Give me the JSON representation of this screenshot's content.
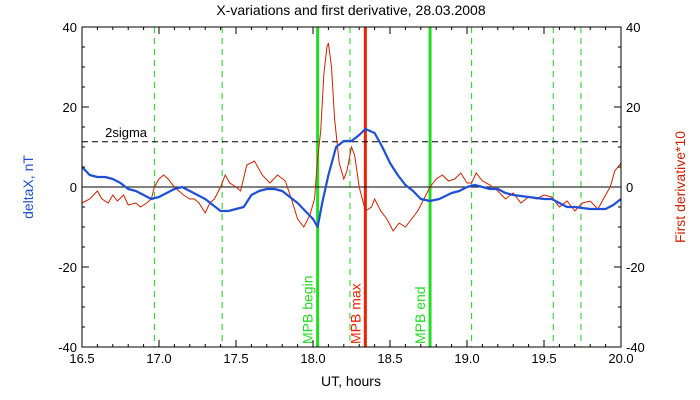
{
  "chart_data": {
    "type": "line",
    "title": "X-variations and first derivative, 28.03.2008",
    "xlabel": "UT, hours",
    "ylabel_left": "deltaX, nT",
    "ylabel_right": "First derivative*10",
    "xlim": [
      16.5,
      20.0
    ],
    "ylim": [
      -40,
      40
    ],
    "x_ticks": [
      "16.5",
      "17.0",
      "17.5",
      "18.0",
      "18.5",
      "19.0",
      "19.5",
      "20.0"
    ],
    "y_ticks": [
      "-40",
      "-20",
      "0",
      "20",
      "40"
    ],
    "grid": false,
    "colors": {
      "deltaX": "#1f4fd6",
      "derivative": "#cc2200",
      "mpb_begin": "#22dd22",
      "mpb_max": "#ee2200",
      "dashed_marker": "#22cc22",
      "axis": "#000000"
    },
    "reference_lines": [
      {
        "label": "2sigma",
        "y": 11.3,
        "style": "dashed"
      },
      {
        "label": "",
        "y": 0,
        "style": "solid"
      }
    ],
    "markers": [
      {
        "label": "MPB begin",
        "x": 18.03,
        "color": "#22dd22"
      },
      {
        "label": "MPB max",
        "x": 18.34,
        "color": "#ee2200"
      },
      {
        "label": "MPB end",
        "x": 18.76,
        "color": "#22dd22"
      }
    ],
    "dashed_markers_x": [
      16.97,
      17.41,
      18.24,
      19.03,
      19.56,
      19.74
    ],
    "series": [
      {
        "name": "deltaX",
        "axis": "left",
        "points": [
          [
            16.5,
            5.0
          ],
          [
            16.55,
            3.0
          ],
          [
            16.6,
            2.5
          ],
          [
            16.65,
            2.5
          ],
          [
            16.7,
            2.0
          ],
          [
            16.75,
            1.0
          ],
          [
            16.8,
            -0.5
          ],
          [
            16.85,
            -1.0
          ],
          [
            16.9,
            -2.0
          ],
          [
            16.95,
            -3.0
          ],
          [
            17.0,
            -2.5
          ],
          [
            17.05,
            -1.5
          ],
          [
            17.1,
            -0.5
          ],
          [
            17.15,
            0.0
          ],
          [
            17.2,
            -1.0
          ],
          [
            17.25,
            -2.0
          ],
          [
            17.3,
            -3.0
          ],
          [
            17.35,
            -4.5
          ],
          [
            17.4,
            -6.0
          ],
          [
            17.45,
            -6.0
          ],
          [
            17.5,
            -5.5
          ],
          [
            17.55,
            -5.0
          ],
          [
            17.6,
            -2.0
          ],
          [
            17.65,
            -1.0
          ],
          [
            17.7,
            -0.5
          ],
          [
            17.75,
            -0.5
          ],
          [
            17.8,
            -1.0
          ],
          [
            17.85,
            -2.5
          ],
          [
            17.9,
            -4.0
          ],
          [
            17.95,
            -6.0
          ],
          [
            18.0,
            -8.0
          ],
          [
            18.03,
            -10.0
          ],
          [
            18.06,
            -4.0
          ],
          [
            18.1,
            3.0
          ],
          [
            18.15,
            10.0
          ],
          [
            18.2,
            11.5
          ],
          [
            18.25,
            11.5
          ],
          [
            18.3,
            13.0
          ],
          [
            18.34,
            14.5
          ],
          [
            18.4,
            13.5
          ],
          [
            18.45,
            10.0
          ],
          [
            18.5,
            6.0
          ],
          [
            18.55,
            3.0
          ],
          [
            18.6,
            0.5
          ],
          [
            18.65,
            -1.0
          ],
          [
            18.7,
            -3.0
          ],
          [
            18.76,
            -3.5
          ],
          [
            18.82,
            -3.0
          ],
          [
            18.9,
            -1.5
          ],
          [
            18.95,
            -1.0
          ],
          [
            19.0,
            0.0
          ],
          [
            19.05,
            0.5
          ],
          [
            19.1,
            0.0
          ],
          [
            19.15,
            -0.5
          ],
          [
            19.2,
            -0.5
          ],
          [
            19.25,
            -1.5
          ],
          [
            19.3,
            -2.0
          ],
          [
            19.4,
            -2.5
          ],
          [
            19.5,
            -3.0
          ],
          [
            19.55,
            -3.0
          ],
          [
            19.6,
            -4.0
          ],
          [
            19.65,
            -5.0
          ],
          [
            19.7,
            -5.0
          ],
          [
            19.8,
            -5.5
          ],
          [
            19.9,
            -5.5
          ],
          [
            19.95,
            -4.5
          ],
          [
            20.0,
            -3.0
          ]
        ]
      },
      {
        "name": "First derivative*10",
        "axis": "right",
        "points": [
          [
            16.5,
            -4.0
          ],
          [
            16.55,
            -3.0
          ],
          [
            16.6,
            -1.0
          ],
          [
            16.63,
            -3.0
          ],
          [
            16.67,
            -4.0
          ],
          [
            16.7,
            -2.0
          ],
          [
            16.73,
            -3.5
          ],
          [
            16.77,
            -2.0
          ],
          [
            16.8,
            -4.5
          ],
          [
            16.85,
            -4.0
          ],
          [
            16.88,
            -5.0
          ],
          [
            16.92,
            -4.0
          ],
          [
            16.95,
            -3.0
          ],
          [
            16.97,
            0.0
          ],
          [
            17.0,
            2.0
          ],
          [
            17.03,
            3.0
          ],
          [
            17.06,
            2.0
          ],
          [
            17.1,
            0.0
          ],
          [
            17.13,
            -1.0
          ],
          [
            17.16,
            -2.0
          ],
          [
            17.2,
            -3.0
          ],
          [
            17.23,
            -3.0
          ],
          [
            17.26,
            -4.0
          ],
          [
            17.3,
            -6.5
          ],
          [
            17.33,
            -4.0
          ],
          [
            17.36,
            -3.0
          ],
          [
            17.4,
            0.0
          ],
          [
            17.43,
            3.0
          ],
          [
            17.46,
            1.0
          ],
          [
            17.5,
            0.0
          ],
          [
            17.53,
            -1.0
          ],
          [
            17.57,
            5.5
          ],
          [
            17.62,
            6.5
          ],
          [
            17.67,
            3.0
          ],
          [
            17.72,
            1.0
          ],
          [
            17.77,
            3.0
          ],
          [
            17.82,
            1.5
          ],
          [
            17.86,
            -3.0
          ],
          [
            17.9,
            -8.0
          ],
          [
            17.94,
            -10.0
          ],
          [
            17.98,
            -7.0
          ],
          [
            18.01,
            -3.0
          ],
          [
            18.03,
            7.0
          ],
          [
            18.05,
            14.0
          ],
          [
            18.07,
            28.0
          ],
          [
            18.09,
            35.0
          ],
          [
            18.1,
            36.0
          ],
          [
            18.12,
            30.0
          ],
          [
            18.14,
            17.0
          ],
          [
            18.17,
            6.0
          ],
          [
            18.2,
            2.0
          ],
          [
            18.22,
            4.0
          ],
          [
            18.25,
            10.0
          ],
          [
            18.27,
            8.0
          ],
          [
            18.3,
            0.0
          ],
          [
            18.34,
            -6.0
          ],
          [
            18.38,
            -5.0
          ],
          [
            18.4,
            -3.0
          ],
          [
            18.44,
            -6.0
          ],
          [
            18.48,
            -8.0
          ],
          [
            18.52,
            -11.0
          ],
          [
            18.56,
            -9.0
          ],
          [
            18.6,
            -10.0
          ],
          [
            18.64,
            -8.0
          ],
          [
            18.68,
            -6.0
          ],
          [
            18.72,
            -3.0
          ],
          [
            18.76,
            0.0
          ],
          [
            18.8,
            2.0
          ],
          [
            18.84,
            3.0
          ],
          [
            18.88,
            1.5
          ],
          [
            18.92,
            2.0
          ],
          [
            18.96,
            3.5
          ],
          [
            19.0,
            1.0
          ],
          [
            19.03,
            1.0
          ],
          [
            19.06,
            3.5
          ],
          [
            19.1,
            1.5
          ],
          [
            19.15,
            0.5
          ],
          [
            19.2,
            -1.0
          ],
          [
            19.25,
            -3.0
          ],
          [
            19.3,
            -1.5
          ],
          [
            19.35,
            -4.0
          ],
          [
            19.4,
            -2.5
          ],
          [
            19.45,
            -3.0
          ],
          [
            19.5,
            -2.0
          ],
          [
            19.55,
            -2.5
          ],
          [
            19.6,
            -5.0
          ],
          [
            19.65,
            -3.5
          ],
          [
            19.7,
            -6.0
          ],
          [
            19.75,
            -4.0
          ],
          [
            19.8,
            -3.5
          ],
          [
            19.85,
            -5.5
          ],
          [
            19.9,
            -2.0
          ],
          [
            19.93,
            0.0
          ],
          [
            19.96,
            4.0
          ],
          [
            20.0,
            6.0
          ]
        ]
      }
    ]
  }
}
